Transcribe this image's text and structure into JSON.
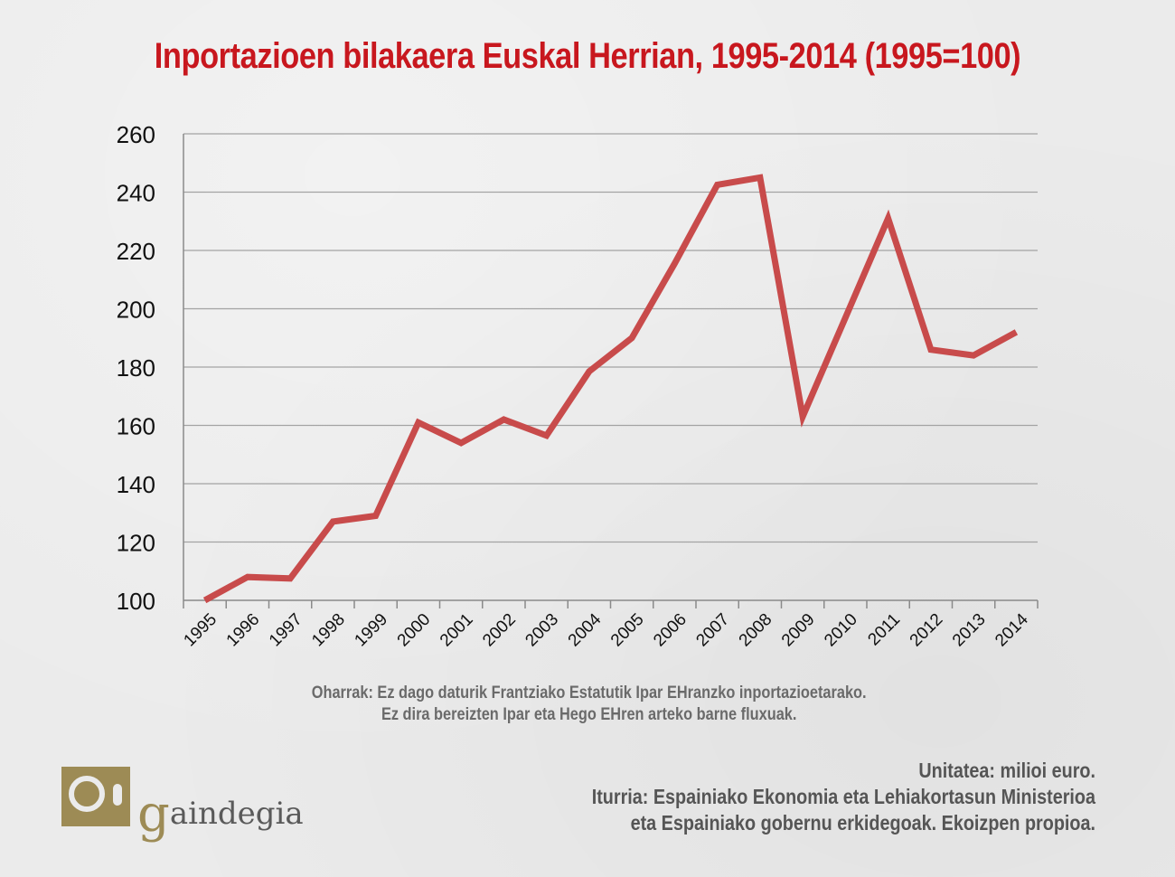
{
  "header": {
    "title": "Inportazioen bilakaera Euskal Herrian, 1995-2014 (1995=100)"
  },
  "notes": {
    "line1": "Oharrak: Ez dago daturik Frantziako Estatutik Ipar EHranzko inportazioetarako.",
    "line2": "Ez dira bereizten Ipar eta Hego EHren arteko barne fluxuak."
  },
  "footer": {
    "unit": "Unitatea: milioi euro.",
    "source_line1": "Iturria: Espainiako Ekonomia eta Lehiakortasun Ministerioa",
    "source_line2": "eta Espainiako gobernu erkidegoak. Ekoizpen propioa."
  },
  "logo": {
    "initial": "g",
    "rest": "aindegia",
    "box_color": "#9d8b55"
  },
  "chart_data": {
    "type": "line",
    "title": "Inportazioen bilakaera Euskal Herrian, 1995-2014 (1995=100)",
    "xlabel": "",
    "ylabel": "",
    "categories": [
      "1995",
      "1996",
      "1997",
      "1998",
      "1999",
      "2000",
      "2001",
      "2002",
      "2003",
      "2004",
      "2005",
      "2006",
      "2007",
      "2008",
      "2009",
      "2010",
      "2011",
      "2012",
      "2013",
      "2014"
    ],
    "series": [
      {
        "values": [
          100,
          108,
          107.5,
          127,
          129,
          161,
          154,
          162,
          156.5,
          178.5,
          190,
          215.5,
          242.5,
          245,
          163,
          197,
          231,
          186,
          184,
          192
        ],
        "color": "#c84b4b"
      }
    ],
    "ylim": [
      100,
      260
    ],
    "yticks": [
      100,
      120,
      140,
      160,
      180,
      200,
      220,
      240,
      260
    ],
    "grid": true,
    "legend": "none"
  }
}
